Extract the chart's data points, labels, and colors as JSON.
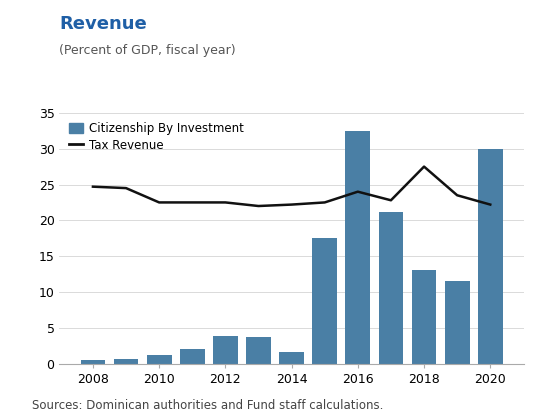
{
  "years": [
    2008,
    2009,
    2010,
    2011,
    2012,
    2013,
    2014,
    2015,
    2016,
    2017,
    2018,
    2019,
    2020
  ],
  "cbi": [
    0.5,
    0.7,
    1.2,
    2.0,
    3.9,
    3.7,
    1.6,
    17.5,
    32.5,
    21.2,
    13.1,
    11.5,
    29.9
  ],
  "tax": [
    24.7,
    24.5,
    22.5,
    22.5,
    22.5,
    22.0,
    22.2,
    22.5,
    24.0,
    22.8,
    27.5,
    23.5,
    22.2
  ],
  "bar_color": "#4a7fa5",
  "line_color": "#111111",
  "title": "Revenue",
  "subtitle": "(Percent of GDP, fiscal year)",
  "title_color": "#1f5fa6",
  "subtitle_color": "#555555",
  "legend_cbi": "Citizenship By Investment",
  "legend_tax": "Tax Revenue",
  "source_text": "Sources: Dominican authorities and Fund staff calculations.",
  "ylim": [
    0,
    35
  ],
  "yticks": [
    0,
    5,
    10,
    15,
    20,
    25,
    30,
    35
  ],
  "xtick_years": [
    2008,
    2010,
    2012,
    2014,
    2016,
    2018,
    2020
  ],
  "background_color": "#ffffff",
  "plot_bg_color": "#ffffff",
  "title_fontsize": 13,
  "subtitle_fontsize": 9,
  "tick_fontsize": 9,
  "source_fontsize": 8.5,
  "legend_fontsize": 8.5,
  "bar_width": 0.75
}
